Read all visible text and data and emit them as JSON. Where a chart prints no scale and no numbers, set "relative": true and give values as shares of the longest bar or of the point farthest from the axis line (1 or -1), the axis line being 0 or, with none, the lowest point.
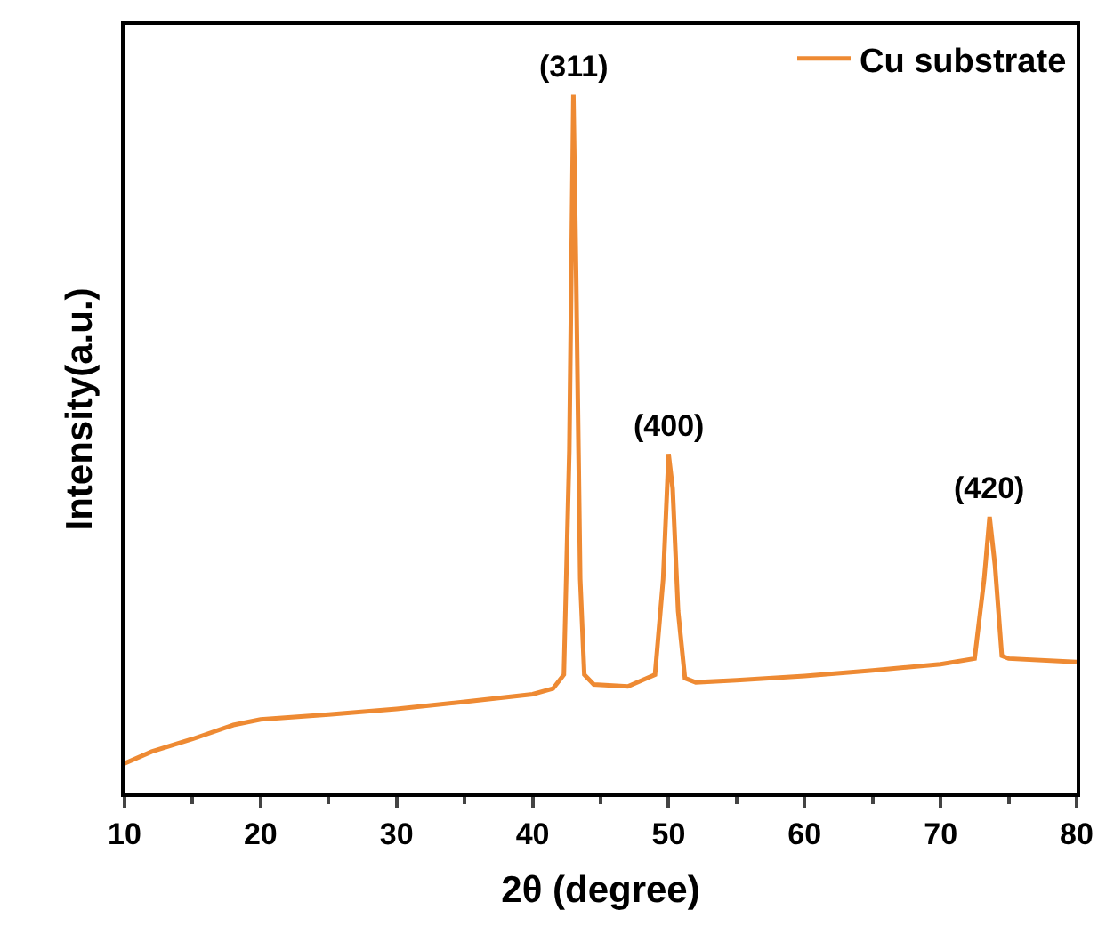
{
  "chart_data": {
    "type": "line",
    "xlabel": "2θ (degree)",
    "ylabel": "Intensity(a.u.)",
    "relative": true,
    "xlim": [
      10,
      80
    ],
    "xticks": [
      10,
      20,
      30,
      40,
      50,
      60,
      70,
      80
    ],
    "tick_labels": "x",
    "legend": "top right",
    "marker": "none",
    "line_style": "solid",
    "series": [
      {
        "name": "Cu substrate",
        "color": "#ee8a33",
        "x": [
          10,
          12,
          15,
          18,
          20,
          25,
          30,
          35,
          40,
          41.5,
          42.3,
          42.7,
          43.0,
          43.2,
          43.5,
          43.8,
          44.5,
          47,
          49,
          49.6,
          50.0,
          50.3,
          50.7,
          51.2,
          52,
          55,
          60,
          65,
          70,
          72.5,
          73.2,
          73.6,
          74.0,
          74.5,
          75,
          80
        ],
        "values": [
          0.043,
          0.06,
          0.078,
          0.098,
          0.106,
          0.113,
          0.121,
          0.131,
          0.142,
          0.15,
          0.17,
          0.49,
          1.0,
          0.748,
          0.307,
          0.17,
          0.156,
          0.153,
          0.17,
          0.307,
          0.486,
          0.436,
          0.261,
          0.165,
          0.159,
          0.162,
          0.168,
          0.176,
          0.185,
          0.193,
          0.307,
          0.396,
          0.326,
          0.197,
          0.193,
          0.188
        ]
      }
    ],
    "annotations": [
      {
        "text": "(311)",
        "x": 43.0,
        "y": 1.0
      },
      {
        "text": "(400)",
        "x": 50.0,
        "y": 0.486
      },
      {
        "text": "(420)",
        "x": 73.6,
        "y": 0.396
      }
    ]
  }
}
